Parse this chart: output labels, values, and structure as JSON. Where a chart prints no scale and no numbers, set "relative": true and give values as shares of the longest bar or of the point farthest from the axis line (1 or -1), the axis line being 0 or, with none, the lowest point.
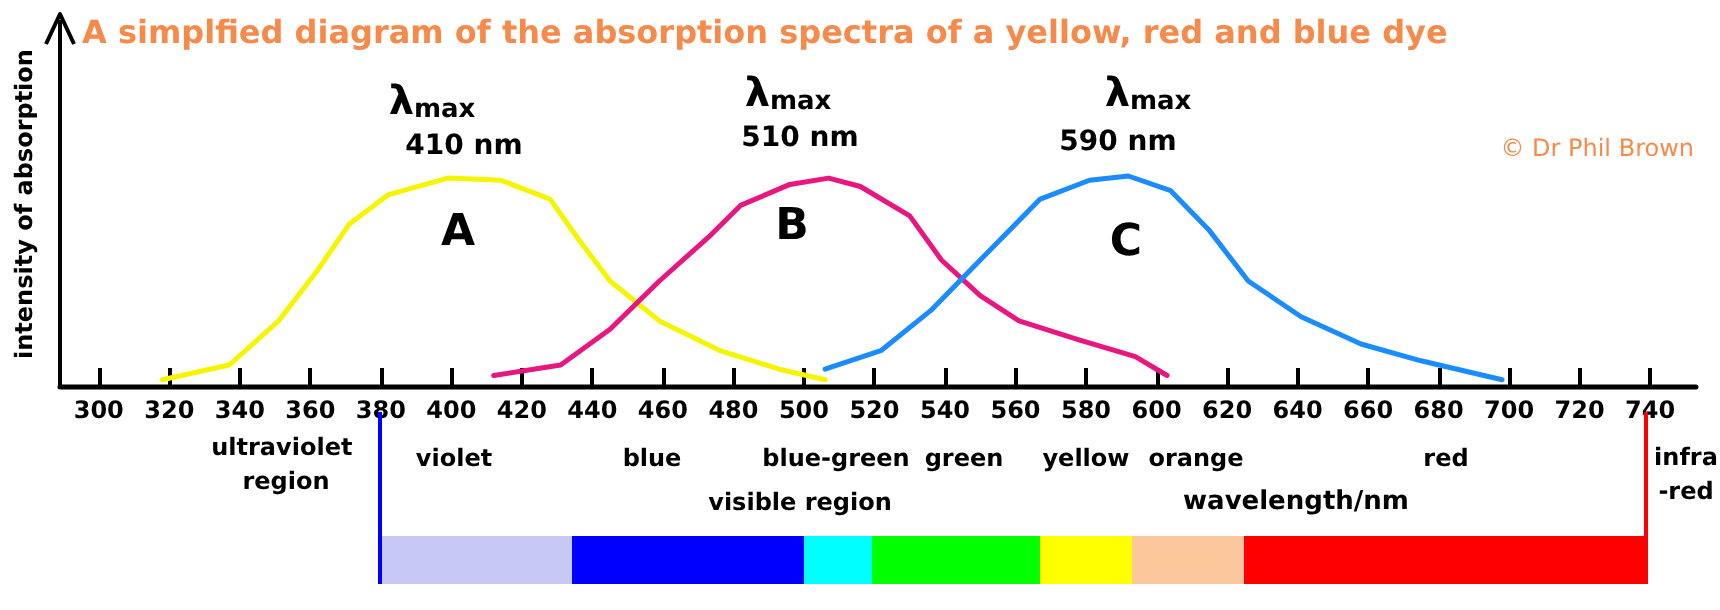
{
  "chart_data": {
    "type": "line",
    "title": "A simplfied diagram of the absorption spectra of a yellow, red and blue dye",
    "ylabel": "intensity of absorption",
    "xlabel": "wavelength/nm",
    "relative": true,
    "grid": false,
    "marker": "none",
    "line_style": "solid",
    "xlim": [
      289,
      753
    ],
    "xticks": [
      300,
      320,
      340,
      360,
      380,
      400,
      420,
      440,
      460,
      480,
      500,
      520,
      540,
      560,
      580,
      600,
      620,
      640,
      660,
      680,
      700,
      720,
      740
    ],
    "series": [
      {
        "color": "#f5f500",
        "x": [
          318,
          337,
          351,
          362,
          371,
          382,
          399,
          414,
          428,
          436,
          445,
          459,
          476,
          493,
          506
        ],
        "values": [
          0.03,
          0.1,
          0.31,
          0.55,
          0.77,
          0.91,
          0.99,
          0.98,
          0.89,
          0.7,
          0.5,
          0.31,
          0.17,
          0.08,
          0.03
        ]
      },
      {
        "color": "#e8177f",
        "x": [
          412,
          431,
          445,
          459,
          473,
          482,
          496,
          507,
          516,
          530,
          539,
          550,
          561,
          578,
          594,
          603
        ],
        "values": [
          0.05,
          0.1,
          0.27,
          0.5,
          0.71,
          0.86,
          0.96,
          0.99,
          0.95,
          0.81,
          0.6,
          0.43,
          0.31,
          0.22,
          0.14,
          0.05
        ]
      },
      {
        "color": "#1a8cff",
        "x": [
          506,
          522,
          536,
          550,
          567,
          581,
          592,
          604,
          615,
          626,
          641,
          658,
          675,
          698
        ],
        "values": [
          0.08,
          0.17,
          0.36,
          0.6,
          0.89,
          0.98,
          1.0,
          0.93,
          0.74,
          0.5,
          0.33,
          0.2,
          0.12,
          0.03
        ]
      }
    ],
    "annotations": [
      "A",
      "B",
      "C",
      "λ$_{max}$",
      "410 nm",
      "λ$_{max}$",
      "510 nm",
      "λ$_{max}$",
      "590 nm",
      "© Dr Phil Brown",
      "ultraviolet region",
      "visible region",
      "infra-red",
      "violet",
      "blue",
      "blue-green",
      "green",
      "yellow",
      "orange",
      "red"
    ]
  }
}
